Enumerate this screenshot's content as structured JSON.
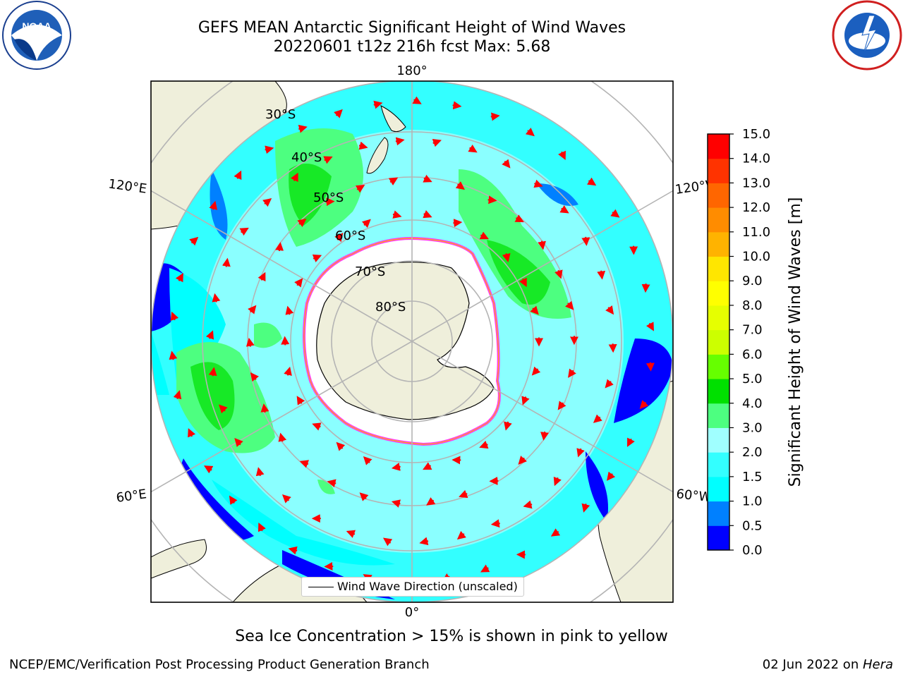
{
  "header": {
    "title_line1": "GEFS MEAN Antarctic Significant Height of Wind Waves",
    "title_line2": "20220601 t12z 216h fcst   Max: 5.68"
  },
  "logos": {
    "left": {
      "icon": "noaa-logo",
      "text": "NOAA"
    },
    "right": {
      "icon": "nws-logo"
    }
  },
  "map": {
    "projection": "south-polar-stereographic",
    "longitude_labels": [
      "180°",
      "0°",
      "120°E",
      "120°W",
      "60°E",
      "60°W"
    ],
    "latitude_labels": [
      "30°S",
      "40°S",
      "50°S",
      "60°S",
      "70°S",
      "80°S"
    ],
    "legend_entry": "Wind Wave Direction (unscaled)",
    "colors": {
      "ocean_low": "#0000ff",
      "ocean_mid": "#00ffff",
      "land": "#efefdb",
      "sea_ice": "#ff33ff",
      "vector": "#ff0000"
    }
  },
  "colorbar": {
    "label": "Significant Height of Wind Waves [m]",
    "ticks": [
      "15.0",
      "14.0",
      "13.0",
      "12.0",
      "11.0",
      "10.0",
      "9.0",
      "8.0",
      "7.0",
      "6.0",
      "5.0",
      "4.0",
      "3.0",
      "2.0",
      "1.5",
      "1.0",
      "0.5",
      "0.0"
    ],
    "bands": [
      {
        "from": 0.0,
        "to": 0.5,
        "color": "#0000ff"
      },
      {
        "from": 0.5,
        "to": 1.0,
        "color": "#0080ff"
      },
      {
        "from": 1.0,
        "to": 1.5,
        "color": "#00ffff"
      },
      {
        "from": 1.5,
        "to": 2.0,
        "color": "#33ffff"
      },
      {
        "from": 2.0,
        "to": 3.0,
        "color": "#a0ffff"
      },
      {
        "from": 3.0,
        "to": 4.0,
        "color": "#4dff80"
      },
      {
        "from": 4.0,
        "to": 5.0,
        "color": "#00e000"
      },
      {
        "from": 5.0,
        "to": 6.0,
        "color": "#66ff00"
      },
      {
        "from": 6.0,
        "to": 7.0,
        "color": "#ccff00"
      },
      {
        "from": 7.0,
        "to": 8.0,
        "color": "#e6ff00"
      },
      {
        "from": 8.0,
        "to": 9.0,
        "color": "#ffff00"
      },
      {
        "from": 9.0,
        "to": 10.0,
        "color": "#ffe600"
      },
      {
        "from": 10.0,
        "to": 11.0,
        "color": "#ffb300"
      },
      {
        "from": 11.0,
        "to": 12.0,
        "color": "#ff8c00"
      },
      {
        "from": 12.0,
        "to": 13.0,
        "color": "#ff6600"
      },
      {
        "from": 13.0,
        "to": 14.0,
        "color": "#ff3300"
      },
      {
        "from": 14.0,
        "to": 15.0,
        "color": "#ff0000"
      }
    ]
  },
  "caption": "Sea Ice Concentration > 15% is shown in pink to yellow",
  "footer": {
    "left": "NCEP/EMC/Verification Post Processing Product Generation Branch",
    "date": "02 Jun 2022 on ",
    "machine": "Hera"
  }
}
